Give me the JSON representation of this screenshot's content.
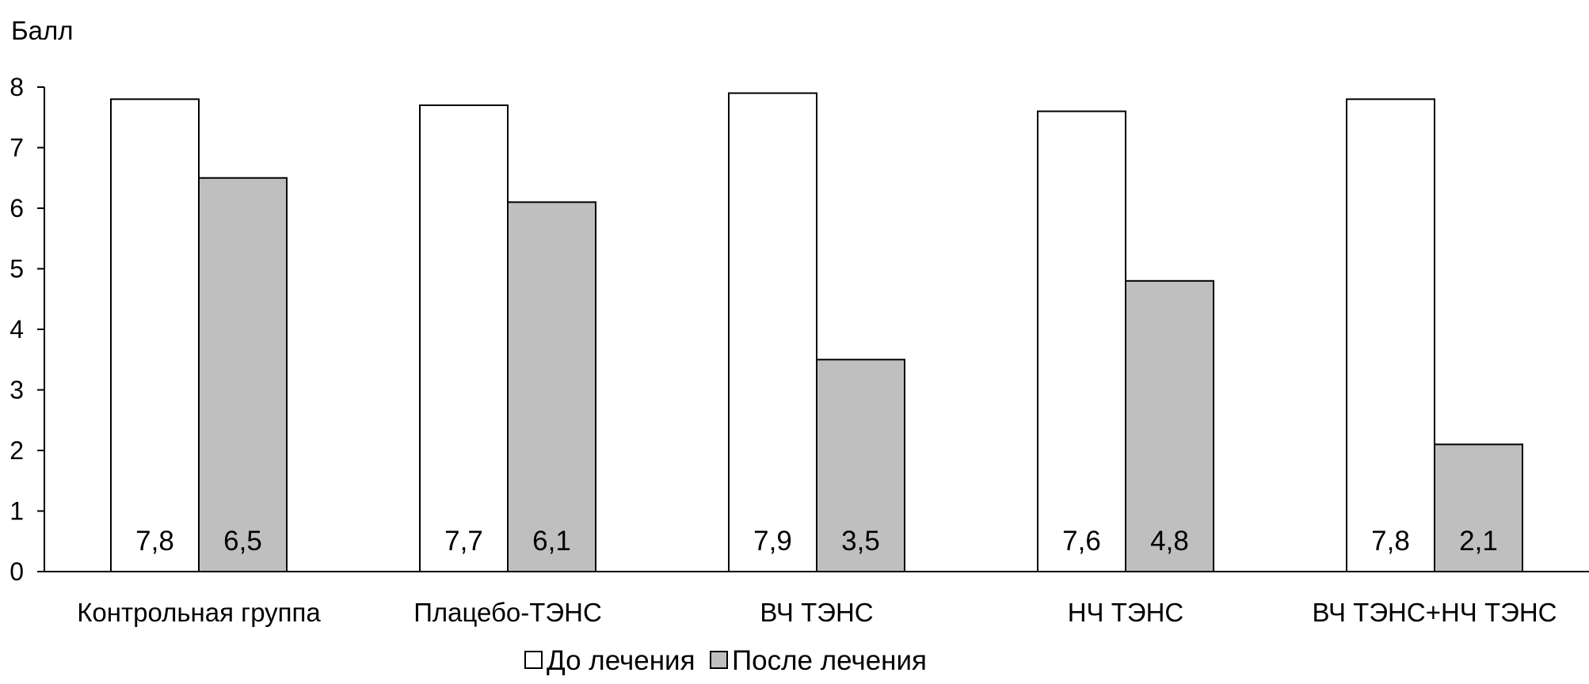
{
  "chart_data": {
    "type": "bar",
    "ylabel": "Балл",
    "ylim": [
      0,
      8
    ],
    "yticks": [
      "0",
      "1",
      "2",
      "3",
      "4",
      "5",
      "6",
      "7",
      "8"
    ],
    "categories": [
      "Контрольная группа",
      "Плацебо-ТЭНС",
      "ВЧ ТЭНС",
      "НЧ ТЭНС",
      "ВЧ ТЭНС+НЧ ТЭНС"
    ],
    "series": [
      {
        "name": "До лечения",
        "color": "#ffffff",
        "values": [
          7.8,
          7.7,
          7.9,
          7.6,
          7.8
        ],
        "labels": [
          "7,8",
          "7,7",
          "7,9",
          "7,6",
          "7,8"
        ]
      },
      {
        "name": "После лечения",
        "color": "#bfbfbf",
        "values": [
          6.5,
          6.1,
          3.5,
          4.8,
          2.1
        ],
        "labels": [
          "6,5",
          "6,1",
          "3,5",
          "4,8",
          "2,1"
        ]
      }
    ],
    "grid": false,
    "legend_position": "bottom"
  }
}
